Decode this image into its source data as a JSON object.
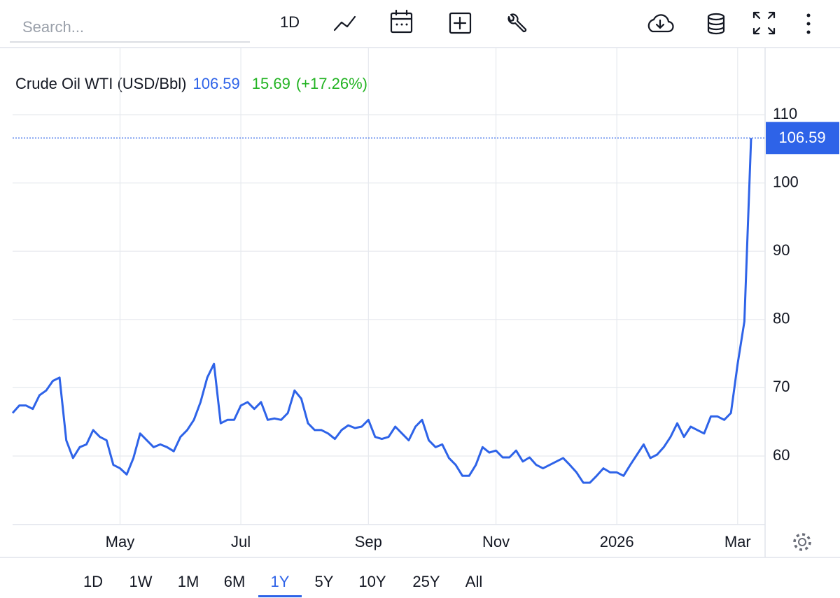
{
  "toolbar": {
    "search_placeholder": "Search...",
    "interval": "1D"
  },
  "ranges": {
    "options": [
      "1D",
      "1W",
      "1M",
      "6M",
      "1Y",
      "5Y",
      "10Y",
      "25Y",
      "All"
    ],
    "active": "1Y"
  },
  "chart_data": {
    "type": "line",
    "title": "Crude Oil WTI (USD/Bbl)",
    "change": 15.69,
    "change_percent": "(+17.26%)",
    "price_color": "#2e63e8",
    "change_color": "#22b322",
    "categories": [
      null,
      null,
      null,
      null,
      null,
      null,
      null,
      null,
      null,
      null,
      null,
      null,
      null,
      null,
      null,
      null,
      "May",
      null,
      null,
      null,
      null,
      null,
      null,
      null,
      null,
      null,
      null,
      null,
      null,
      null,
      null,
      null,
      null,
      null,
      "Jul",
      null,
      null,
      null,
      null,
      null,
      null,
      null,
      null,
      null,
      null,
      null,
      null,
      null,
      null,
      null,
      null,
      null,
      null,
      "Sep",
      null,
      null,
      null,
      null,
      null,
      null,
      null,
      null,
      null,
      null,
      null,
      null,
      null,
      null,
      null,
      null,
      null,
      null,
      "Nov",
      null,
      null,
      null,
      null,
      null,
      null,
      null,
      null,
      null,
      null,
      null,
      null,
      null,
      null,
      null,
      null,
      null,
      "2026",
      null,
      null,
      null,
      null,
      null,
      null,
      null,
      null,
      null,
      null,
      null,
      null,
      null,
      null,
      null,
      null,
      null,
      "Mar",
      null,
      null
    ],
    "series": [
      {
        "name": "Crude Oil WTI",
        "color": "#2e63e8",
        "values": [
          66.3,
          67.4,
          67.4,
          66.9,
          68.9,
          69.6,
          71.0,
          71.5,
          62.3,
          59.7,
          61.3,
          61.7,
          63.8,
          62.8,
          62.3,
          58.7,
          58.2,
          57.3,
          59.7,
          63.3,
          62.3,
          61.3,
          61.7,
          61.3,
          60.7,
          62.8,
          63.8,
          65.3,
          67.9,
          71.5,
          73.5,
          64.8,
          65.3,
          65.3,
          67.4,
          67.9,
          66.9,
          67.9,
          65.3,
          65.5,
          65.3,
          66.3,
          69.6,
          68.4,
          64.8,
          63.8,
          63.8,
          63.3,
          62.5,
          63.8,
          64.5,
          64.1,
          64.3,
          65.3,
          62.8,
          62.5,
          62.8,
          64.3,
          63.3,
          62.3,
          64.3,
          65.3,
          62.3,
          61.3,
          61.7,
          59.7,
          58.7,
          57.1,
          57.1,
          58.7,
          61.3,
          60.5,
          60.8,
          59.8,
          59.8,
          60.8,
          59.2,
          59.8,
          58.7,
          58.2,
          58.7,
          59.2,
          59.7,
          58.7,
          57.6,
          56.1,
          56.1,
          57.1,
          58.2,
          57.6,
          57.6,
          57.1,
          58.7,
          60.2,
          61.7,
          59.7,
          60.2,
          61.3,
          62.8,
          64.8,
          62.8,
          64.3,
          63.8,
          63.3,
          65.8,
          65.8,
          65.3,
          66.3,
          73.5,
          79.7,
          106.59
        ]
      }
    ],
    "ylim": [
      50,
      120
    ],
    "yticks": [
      60,
      70,
      80,
      90,
      100,
      110
    ],
    "grid": true
  }
}
